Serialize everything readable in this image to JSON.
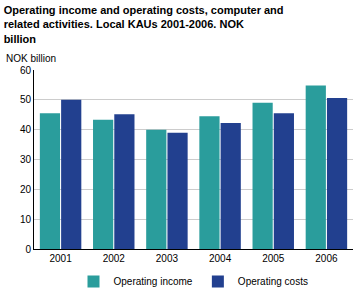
{
  "chart_data": {
    "type": "bar",
    "title": "Operating income and operating costs, computer and related activities. Local KAUs 2001-2006. NOK billion",
    "ylabel": "NOK billion",
    "categories": [
      "2001",
      "2002",
      "2003",
      "2004",
      "2005",
      "2006"
    ],
    "series": [
      {
        "name": "Operating income",
        "color": "#2a9d9c",
        "values": [
          45.5,
          43.3,
          40.0,
          44.5,
          49.0,
          54.8
        ]
      },
      {
        "name": "Operating costs",
        "color": "#22408f",
        "values": [
          50.0,
          45.2,
          39.0,
          42.2,
          45.5,
          50.6
        ]
      }
    ],
    "ylim": [
      0,
      60
    ],
    "yticks": [
      0,
      10,
      20,
      30,
      40,
      50,
      60
    ],
    "grid": true,
    "legend": "bottom"
  }
}
